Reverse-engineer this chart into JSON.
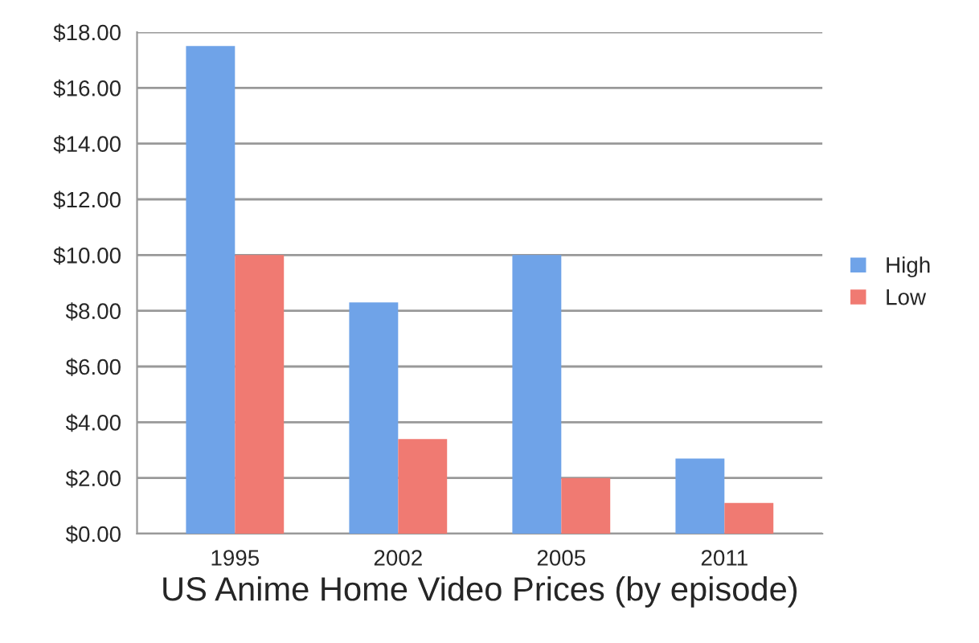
{
  "chart_data": {
    "type": "bar",
    "title": "US Anime Home Video Prices (by episode)",
    "categories": [
      "1995",
      "2002",
      "2005",
      "2011"
    ],
    "series": [
      {
        "name": "High",
        "color": "#6fa3e8",
        "values": [
          17.5,
          8.3,
          10.0,
          2.7
        ]
      },
      {
        "name": "Low",
        "color": "#f07a72",
        "values": [
          10.0,
          3.4,
          2.0,
          1.1
        ]
      }
    ],
    "ylim": [
      0,
      18
    ],
    "yticks": [
      {
        "value": 0,
        "label": "$0.00"
      },
      {
        "value": 2,
        "label": "$2.00"
      },
      {
        "value": 4,
        "label": "$4.00"
      },
      {
        "value": 6,
        "label": "$6.00"
      },
      {
        "value": 8,
        "label": "$8.00"
      },
      {
        "value": 10,
        "label": "$10.00"
      },
      {
        "value": 12,
        "label": "$12.00"
      },
      {
        "value": 14,
        "label": "$14.00"
      },
      {
        "value": 16,
        "label": "$16.00"
      },
      {
        "value": 18,
        "label": "$18.00"
      }
    ],
    "grid": "y",
    "legend": "right"
  }
}
